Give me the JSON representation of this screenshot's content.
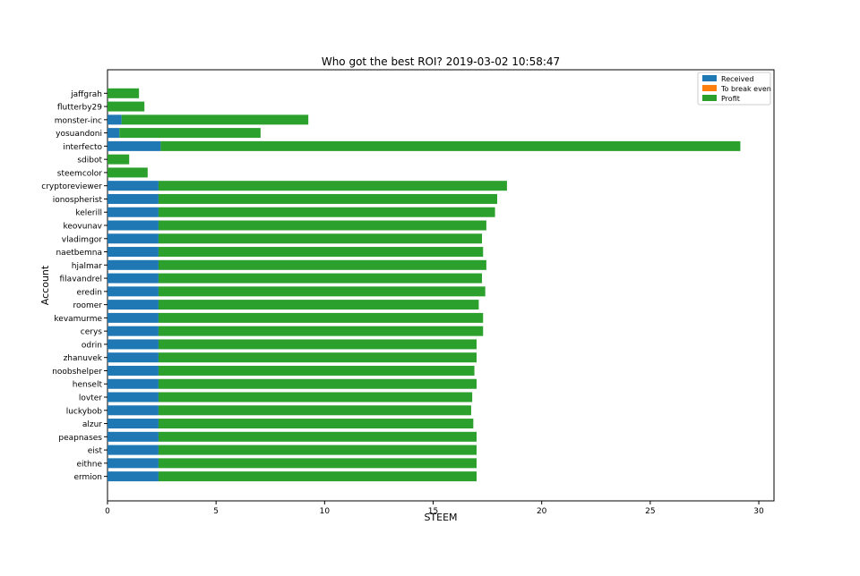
{
  "chart_data": {
    "type": "bar",
    "orientation": "horizontal",
    "stacked": true,
    "title": "Who got the best ROI? 2019-03-02 10:58:47",
    "xlabel": "STEEM",
    "ylabel": "Account",
    "xlim": [
      0,
      30.7
    ],
    "xticks": [
      0,
      5,
      10,
      15,
      20,
      25,
      30
    ],
    "legend_position": "top-right",
    "categories": [
      "jaffgrah",
      "flutterby29",
      "monster-inc",
      "yosuandoni",
      "interfecto",
      "sdibot",
      "steemcolor",
      "cryptoreviewer",
      "ionospherist",
      "kelerill",
      "keovunav",
      "vladimgor",
      "naetbemna",
      "hjalmar",
      "filavandrel",
      "eredin",
      "roomer",
      "kevamurme",
      "cerys",
      "odrin",
      "zhanuvek",
      "noobshelper",
      "henselt",
      "lovter",
      "luckybob",
      "alzur",
      "peapnases",
      "eist",
      "eithne",
      "ermion"
    ],
    "series": [
      {
        "name": "Received",
        "color": "#1f77b4",
        "values": [
          0.0,
          0.0,
          0.65,
          0.55,
          2.45,
          0.0,
          0.0,
          2.35,
          2.35,
          2.35,
          2.35,
          2.35,
          2.35,
          2.35,
          2.35,
          2.35,
          2.35,
          2.35,
          2.35,
          2.35,
          2.35,
          2.35,
          2.35,
          2.35,
          2.35,
          2.35,
          2.35,
          2.35,
          2.35,
          2.35
        ]
      },
      {
        "name": "To break even",
        "color": "#ff7f0e",
        "values": [
          0,
          0,
          0,
          0,
          0,
          0,
          0,
          0,
          0,
          0,
          0,
          0,
          0,
          0,
          0,
          0,
          0,
          0,
          0,
          0,
          0,
          0,
          0,
          0,
          0,
          0,
          0,
          0,
          0,
          0
        ]
      },
      {
        "name": "Profit",
        "color": "#2ca02c",
        "values": [
          1.45,
          1.7,
          8.6,
          6.5,
          26.7,
          1.0,
          1.85,
          16.05,
          15.6,
          15.5,
          15.1,
          14.9,
          14.95,
          15.1,
          14.9,
          15.05,
          14.75,
          14.95,
          14.95,
          14.65,
          14.65,
          14.55,
          14.65,
          14.45,
          14.4,
          14.5,
          14.65,
          14.65,
          14.65,
          14.65
        ]
      }
    ]
  }
}
